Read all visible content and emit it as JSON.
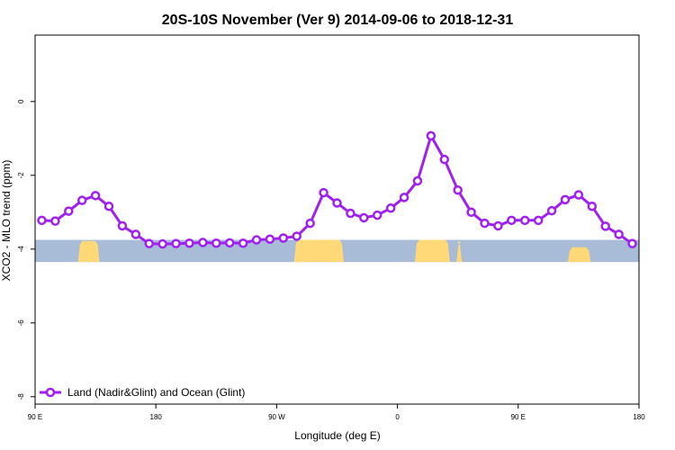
{
  "chart_data": {
    "type": "line",
    "title": "20S-10S November (Ver 9)   2014-09-06 to 2018-12-31",
    "xlabel": "Longitude (deg E)",
    "ylabel": "XCO2 - MLO trend (ppm)",
    "xlim": [
      90,
      540
    ],
    "ylim": [
      -8.2,
      1.8
    ],
    "x_ticks": [
      {
        "value": 90,
        "label": "90 E"
      },
      {
        "value": 180,
        "label": "180"
      },
      {
        "value": 270,
        "label": "90 W"
      },
      {
        "value": 360,
        "label": "0"
      },
      {
        "value": 450,
        "label": "90 E"
      },
      {
        "value": 540,
        "label": "180"
      }
    ],
    "y_ticks": [
      {
        "value": 0,
        "label": "0"
      },
      {
        "value": -2,
        "label": "-2"
      },
      {
        "value": -4,
        "label": "-4"
      },
      {
        "value": -6,
        "label": "-6"
      },
      {
        "value": -8,
        "label": "-8"
      }
    ],
    "legend": {
      "position": "bottom-left"
    },
    "series": [
      {
        "name": "Land (Nadir&Glint) and Ocean (Glint)",
        "color": "#a020f0",
        "x": [
          95,
          105,
          115,
          125,
          135,
          145,
          155,
          165,
          175,
          185,
          195,
          205,
          215,
          225,
          235,
          245,
          255,
          265,
          275,
          285,
          295,
          305,
          315,
          325,
          335,
          345,
          355,
          365,
          375,
          385,
          395,
          405,
          415,
          425,
          435,
          445,
          455,
          465,
          475,
          485,
          495,
          505,
          515,
          525,
          535
        ],
        "y": [
          -3.22,
          -3.24,
          -2.97,
          -2.68,
          -2.55,
          -2.84,
          -3.37,
          -3.6,
          -3.85,
          -3.86,
          -3.85,
          -3.84,
          -3.82,
          -3.84,
          -3.83,
          -3.84,
          -3.75,
          -3.73,
          -3.7,
          -3.65,
          -3.3,
          -2.47,
          -2.75,
          -3.03,
          -3.15,
          -3.08,
          -2.89,
          -2.6,
          -2.15,
          -0.93,
          -1.57,
          -2.4,
          -3.0,
          -3.3,
          -3.37,
          -3.22,
          -3.22,
          -3.22,
          -2.96,
          -2.66,
          -2.53,
          -2.84,
          -3.38,
          -3.6,
          -3.85
        ]
      }
    ],
    "map_strip": {
      "y_range": [
        -4.35,
        -3.75
      ],
      "ocean_color": "#a8bcd8",
      "land_color": "#ffd878",
      "land_segments": [
        {
          "x": [
            122,
            138
          ],
          "top": -3.78
        },
        {
          "x": [
            283,
            320
          ],
          "top": -3.75
        },
        {
          "x": [
            373,
            399
          ],
          "top": -3.75
        },
        {
          "x": [
            404,
            408
          ],
          "top": -3.8
        },
        {
          "x": [
            487,
            504
          ],
          "top": -3.95
        }
      ]
    }
  }
}
